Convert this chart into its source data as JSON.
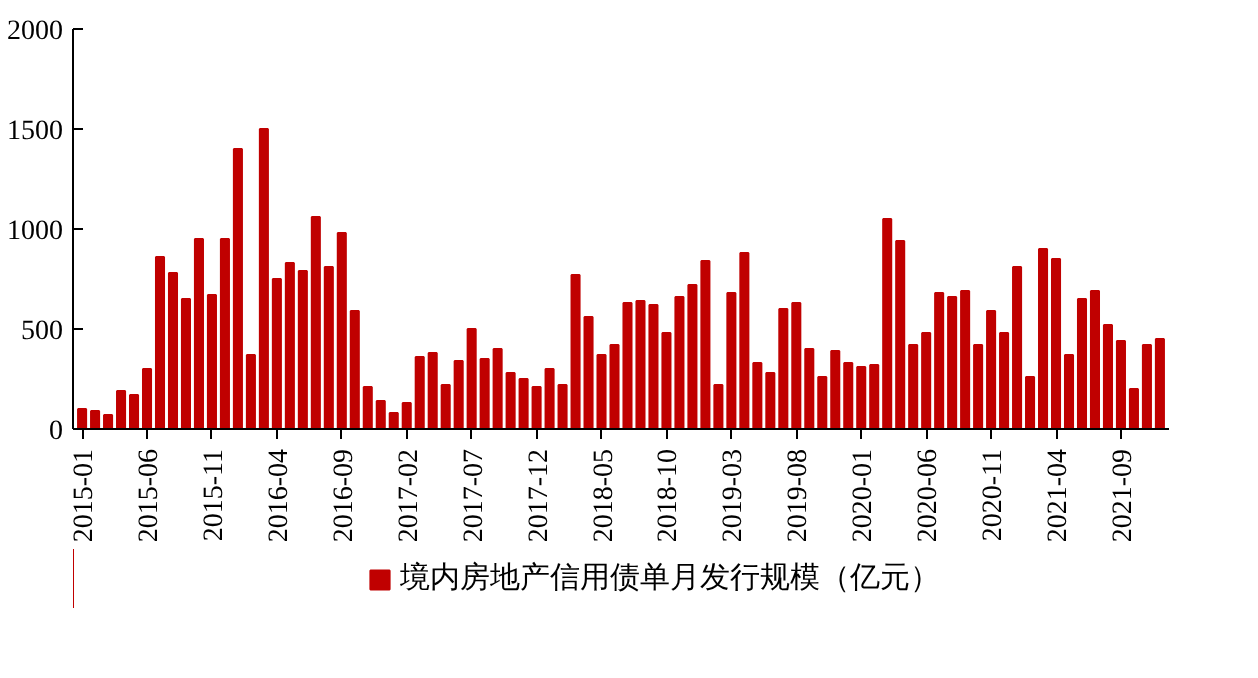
{
  "chart_data": {
    "type": "bar",
    "categories": [
      "2015-01",
      null,
      null,
      null,
      null,
      "2015-06",
      null,
      null,
      null,
      null,
      "2015-11",
      null,
      null,
      null,
      null,
      "2016-04",
      null,
      null,
      null,
      null,
      "2016-09",
      null,
      null,
      null,
      null,
      "2017-02",
      null,
      null,
      null,
      null,
      "2017-07",
      null,
      null,
      null,
      null,
      "2017-12",
      null,
      null,
      null,
      null,
      "2018-05",
      null,
      null,
      null,
      null,
      "2018-10",
      null,
      null,
      null,
      null,
      "2019-03",
      null,
      null,
      null,
      null,
      "2019-08",
      null,
      null,
      null,
      null,
      "2020-01",
      null,
      null,
      null,
      null,
      "2020-06",
      null,
      null,
      null,
      null,
      "2020-11",
      null,
      null,
      null,
      null,
      "2021-04",
      null,
      null,
      null,
      null,
      "2021-09",
      null,
      null,
      null
    ],
    "series": [
      {
        "name": "境内房地产信用债单月发行规模（亿元）",
        "color": "#c00000",
        "values": [
          100,
          90,
          70,
          190,
          170,
          300,
          860,
          780,
          650,
          950,
          670,
          950,
          1400,
          370,
          1500,
          750,
          830,
          790,
          1060,
          810,
          980,
          590,
          210,
          140,
          80,
          130,
          360,
          380,
          220,
          340,
          500,
          350,
          400,
          280,
          250,
          210,
          300,
          220,
          770,
          560,
          370,
          420,
          630,
          640,
          620,
          480,
          660,
          720,
          840,
          220,
          680,
          880,
          330,
          280,
          600,
          630,
          400,
          260,
          390,
          330,
          310,
          320,
          1050,
          940,
          420,
          480,
          680,
          660,
          690,
          420,
          590,
          480,
          810,
          260,
          900,
          850,
          370,
          650,
          690,
          520,
          440,
          200,
          420,
          450
        ]
      }
    ],
    "ylim": [
      0,
      2000
    ],
    "yticks": [
      0,
      500,
      1000,
      1500,
      2000
    ],
    "grid": false,
    "legend": "bottom"
  }
}
